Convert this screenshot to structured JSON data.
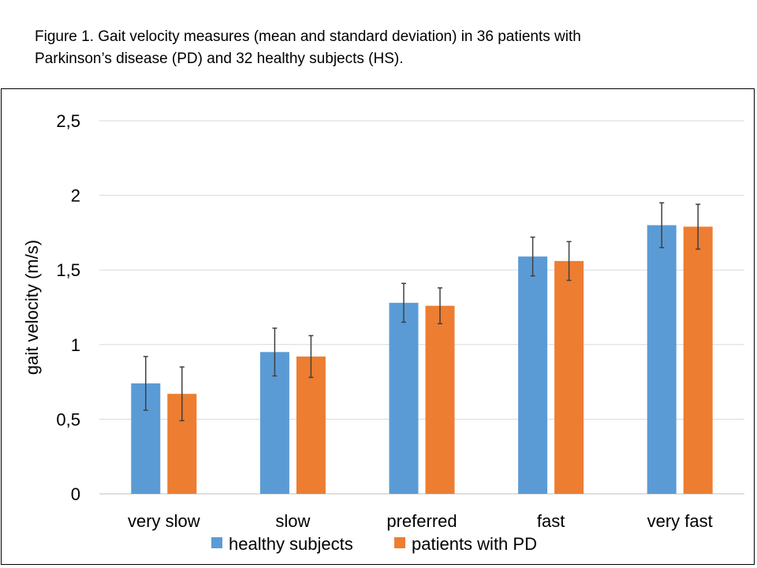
{
  "figure": {
    "caption_line1": "Figure 1.  Gait velocity measures (mean and standard deviation) in 36 patients with",
    "caption_line2": "Parkinson’s disease (PD) and 32 healthy subjects (HS)."
  },
  "chart_data": {
    "type": "bar",
    "ylabel": "gait velocity (m/s)",
    "xlabel": "",
    "ylim": [
      0,
      2.5
    ],
    "yticks": [
      0,
      0.5,
      1,
      1.5,
      2,
      2.5
    ],
    "ytick_labels": [
      "0",
      "0,5",
      "1",
      "1,5",
      "2",
      "2,5"
    ],
    "grid": true,
    "legend_position": "bottom",
    "categories": [
      "very slow",
      "slow",
      "preferred",
      "fast",
      "very fast"
    ],
    "series": [
      {
        "name": "healthy subjects",
        "color": "#5b9bd5",
        "values": [
          0.74,
          0.95,
          1.28,
          1.59,
          1.8
        ],
        "sd": [
          0.18,
          0.16,
          0.13,
          0.13,
          0.15
        ]
      },
      {
        "name": "patients with PD",
        "color": "#ed7d31",
        "values": [
          0.67,
          0.92,
          1.26,
          1.56,
          1.79
        ],
        "sd": [
          0.18,
          0.14,
          0.12,
          0.13,
          0.15
        ]
      }
    ]
  }
}
